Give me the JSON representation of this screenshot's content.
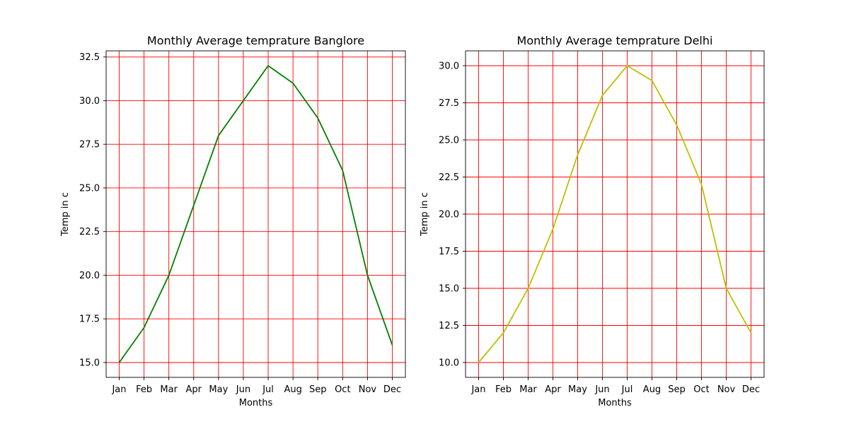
{
  "chart_data": [
    {
      "type": "line",
      "title": "Monthly Average temprature Banglore",
      "xlabel": "Months",
      "ylabel": "Temp in c",
      "categories": [
        "Jan",
        "Feb",
        "Mar",
        "Apr",
        "May",
        "Jun",
        "Jul",
        "Aug",
        "Sep",
        "Oct",
        "Nov",
        "Dec"
      ],
      "series": [
        {
          "values": [
            15,
            17,
            20,
            24,
            28,
            30,
            32,
            31,
            29,
            26,
            20,
            16
          ],
          "color": "#008000"
        }
      ],
      "ylim": [
        14.15,
        32.85
      ],
      "yticks": [
        "15.0",
        "17.5",
        "20.0",
        "22.5",
        "25.0",
        "27.5",
        "30.0",
        "32.5"
      ],
      "grid": true,
      "grid_color": "#ff0000"
    },
    {
      "type": "line",
      "title": "Monthly Average temprature Delhi",
      "xlabel": "Months",
      "ylabel": "Temp in c",
      "categories": [
        "Jan",
        "Feb",
        "Mar",
        "Apr",
        "May",
        "Jun",
        "Jul",
        "Aug",
        "Sep",
        "Oct",
        "Nov",
        "Dec"
      ],
      "series": [
        {
          "values": [
            10,
            12,
            15,
            19,
            24,
            28,
            30,
            29,
            26,
            22,
            15,
            12
          ],
          "color": "#bfbf00"
        }
      ],
      "ylim": [
        9,
        31
      ],
      "yticks": [
        "10.0",
        "12.5",
        "15.0",
        "17.5",
        "20.0",
        "22.5",
        "25.0",
        "27.5",
        "30.0"
      ],
      "grid": true,
      "grid_color": "#ff0000"
    }
  ]
}
